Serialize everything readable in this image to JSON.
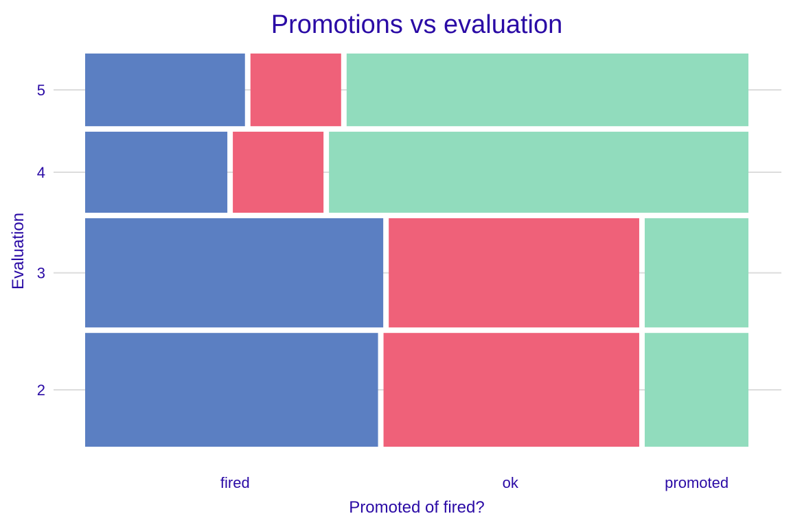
{
  "chart_data": {
    "type": "mosaic",
    "title": "Promotions vs evaluation",
    "xlabel": "Promoted of fired?",
    "ylabel": "Evaluation",
    "categories": [
      "fired",
      "ok",
      "promoted"
    ],
    "colors": {
      "fired": "#5b7fc2",
      "ok": "#ef6179",
      "promoted": "#91dcbd"
    },
    "grid": true,
    "legend": "none",
    "rows": [
      {
        "label": "5",
        "share": 0.191,
        "fractions": {
          "fired": 0.245,
          "ok": 0.139,
          "promoted": 0.616
        }
      },
      {
        "label": "4",
        "share": 0.213,
        "fractions": {
          "fired": 0.218,
          "ok": 0.139,
          "promoted": 0.643
        }
      },
      {
        "label": "3",
        "share": 0.287,
        "fractions": {
          "fired": 0.457,
          "ok": 0.384,
          "promoted": 0.159
        }
      },
      {
        "label": "2",
        "share": 0.299,
        "fractions": {
          "fired": 0.449,
          "ok": 0.392,
          "promoted": 0.159
        }
      }
    ],
    "x_tick_label_positions": {
      "fired": 0.226,
      "ok": 0.641,
      "promoted": 0.922
    }
  }
}
